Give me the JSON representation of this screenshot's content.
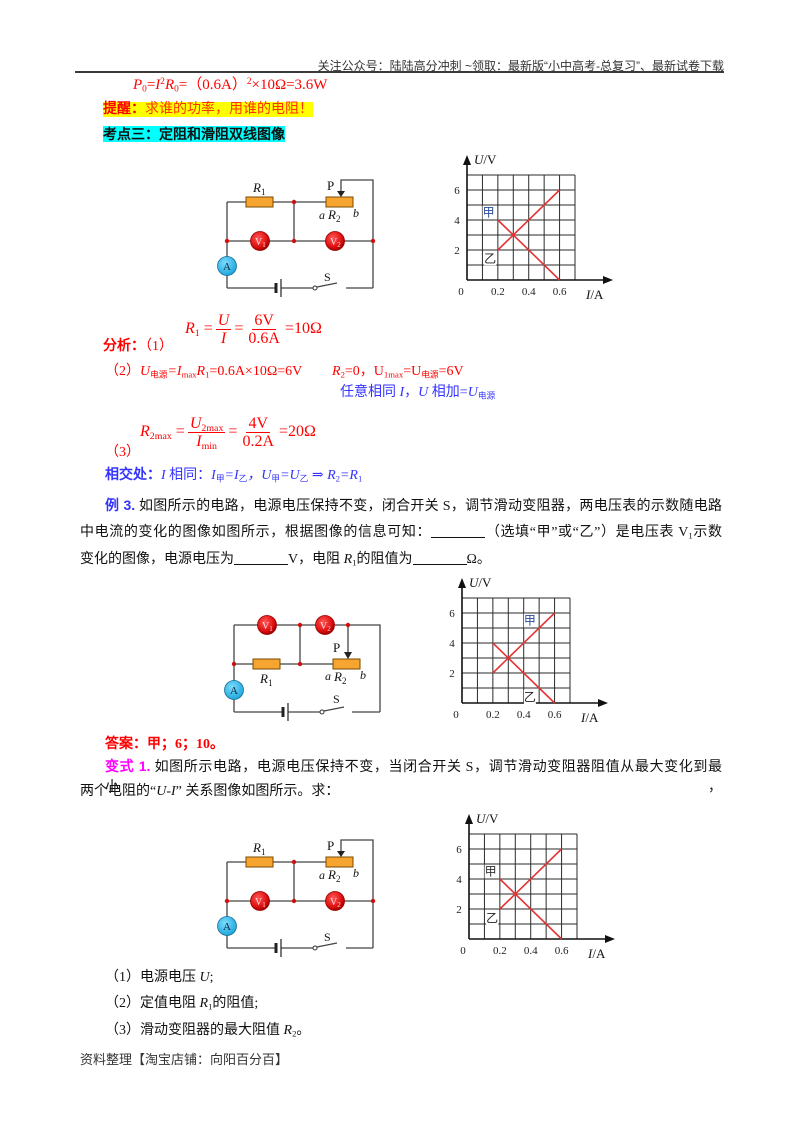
{
  "header": {
    "notice": "关注公众号：陆陆高分冲刺  ~领取：最新版“小中高考-总复习”、最新试卷下载"
  },
  "review": {
    "power_formula": {
      "p": "P",
      "p_sub": "0",
      "eq1": "=",
      "i": "I",
      "i_sup": "2",
      "r": "R",
      "r_sub": "0",
      "mid": "=（0.6A）",
      "sq": "2",
      "tail": "×10Ω=3.6W"
    },
    "reminder_label": "提醒：",
    "reminder_text": "求谁的功率，用谁的电阻！",
    "topic_heading": "考点三：定阻和滑阻双线图像"
  },
  "circuit": {
    "r": "R",
    "r1_sub": "1",
    "r2_sub": "2",
    "slider": "P",
    "end_a": "a",
    "end_b": "b",
    "switch": "S",
    "voltmeter": "V",
    "v1_sub": "1",
    "v2_sub": "2",
    "ammeter": "A"
  },
  "analysis": {
    "label": "分析：",
    "step1": {
      "num": "（1）",
      "lhs": "R",
      "lhs_sub": "1",
      "eq": "=",
      "frac1_num": "U",
      "frac1_den": "I",
      "frac2_num": "6V",
      "frac2_den": "0.6A",
      "result": "=10Ω"
    },
    "step2": {
      "num": "（2）",
      "u": "U",
      "u_sub": "电源",
      "eq1": "=I",
      "i_sub": "max",
      "r": "R",
      "r_sub": "1",
      "rest": "=0.6A×10Ω=6V",
      "r2": "R",
      "r2_sub": "2",
      "mid": "=0，U",
      "u1_sub": "1max",
      "eq2": "=U",
      "src_sub": "电源",
      "end": "=6V"
    },
    "note": {
      "t1": "任意相同 ",
      "i": "I",
      "comma": "，",
      "u": "U",
      "t2": " 相加=",
      "u2": "U",
      "sub": "电源"
    },
    "step3": {
      "num": "（3）",
      "lhs": "R",
      "lhs_sub": "2max",
      "eq": "=",
      "frac1_num": "U",
      "frac1_num_sub": "2max",
      "frac1_den": "I",
      "frac1_den_sub": "min",
      "frac2_num": "4V",
      "frac2_den": "0.2A",
      "result": "=20Ω"
    },
    "intersection": {
      "label": "相交处：",
      "i": "I",
      "t1": " 相同：",
      "i2": "I",
      "s1": "甲",
      "e1": "=I",
      "s2": "乙",
      "c1": "，U",
      "s3": "甲",
      "e2": "=U",
      "s4": "乙",
      "arrow": " ⇒ ",
      "r": "R",
      "r_sub": "2",
      "e3": "=R",
      "r1_sub": "1"
    }
  },
  "example3": {
    "label": "例 3.",
    "line1": "如图所示的电路，电源电压保持不变，闭合开关 S，调节滑动变阻器，两电压表的示数随电路",
    "line2a": "中电流的变化的图像如图所示，根据图像的信息可知：",
    "line2b": "（选填“甲”或“乙”）是电压表 V",
    "line2b_sub": "1",
    "line2c": "示数",
    "line3a": "变化的图像，电源电压为",
    "line3b": "V，电阻 ",
    "line3_r": "R",
    "line3_r_sub": "1",
    "line3c": "的阻值为",
    "line3d": "Ω。"
  },
  "answer": {
    "label": "答案：",
    "value": "甲；6；10。"
  },
  "variant1": {
    "label": "变式 1.",
    "line1": "如图所示电路，电源电压保持不变，当闭合开关 S，调节滑动变阻器阻值从最大变化到最小，",
    "line2a": "两个电阻的“",
    "line2_ui": "U-I",
    "line2b": "” 关系图像如图所示。求：",
    "questions": [
      {
        "num": "（1）",
        "text": "电源电压 ",
        "var": "U",
        "sub": "",
        "tail": ";"
      },
      {
        "num": "（2）",
        "text": "定值电阻 ",
        "var": "R",
        "sub": "1",
        "tail": "的阻值;"
      },
      {
        "num": "（3）",
        "text": "滑动变阻器的最大阻值 ",
        "var": "R",
        "sub": "2",
        "tail": "。"
      }
    ]
  },
  "footer": {
    "text": "资料整理【淘宝店铺：向阳百分百】"
  },
  "colors": {
    "formula_red": "#ff0000",
    "reminder_orange": "#ff3300",
    "highlight_yellow": "#ffff00",
    "highlight_cyan": "#00ffff",
    "note_blue": "#3333ff",
    "variant_magenta": "#ff00ff",
    "resistor": "#f6a531",
    "voltmeter": "#e01010",
    "ammeter": "#2fb8e8",
    "graph_line": "#e53333"
  },
  "chart_data": [
    {
      "type": "line",
      "title": "",
      "xlabel": "I/A",
      "ylabel": "U/V",
      "xlim": [
        0,
        0.7
      ],
      "ylim": [
        0,
        7
      ],
      "grid": true,
      "grid_step": [
        0.1,
        1
      ],
      "origin_label": "0",
      "xticks": [
        0.2,
        0.4,
        0.6
      ],
      "xtick_labels": [
        "0.2",
        "0.4",
        "0.6"
      ],
      "yticks": [
        2,
        4,
        6
      ],
      "ytick_labels": [
        "2",
        "4",
        "6"
      ],
      "series": [
        {
          "name": "甲",
          "x": [
            0.2,
            0.6
          ],
          "y": [
            4,
            0
          ]
        },
        {
          "name": "乙",
          "x": [
            0.2,
            0.6
          ],
          "y": [
            2,
            6
          ]
        }
      ],
      "markers": [
        [
          0.3,
          3
        ]
      ],
      "annotations": [
        {
          "text": "甲",
          "x": 0.14,
          "y": 4.5,
          "color": "#2a4d9a"
        },
        {
          "text": "乙",
          "x": 0.15,
          "y": 1.45,
          "color": "#222222"
        }
      ],
      "line_color": "#e53333"
    },
    {
      "type": "line",
      "title": "",
      "xlabel": "I/A",
      "ylabel": "U/V",
      "xlim": [
        0,
        0.7
      ],
      "ylim": [
        0,
        7
      ],
      "grid": true,
      "grid_step": [
        0.1,
        1
      ],
      "origin_label": "0",
      "xticks": [
        0.2,
        0.4,
        0.6
      ],
      "xtick_labels": [
        "0.2",
        "0.4",
        "0.6"
      ],
      "yticks": [
        2,
        4,
        6
      ],
      "ytick_labels": [
        "2",
        "4",
        "6"
      ],
      "series": [
        {
          "name": "甲",
          "x": [
            0.2,
            0.6
          ],
          "y": [
            2,
            6
          ]
        },
        {
          "name": "乙",
          "x": [
            0.2,
            0.6
          ],
          "y": [
            4,
            0
          ]
        }
      ],
      "markers": [
        [
          0.3,
          3
        ]
      ],
      "annotations": [
        {
          "text": "甲",
          "x": 0.44,
          "y": 5.5,
          "color": "#2a4d9a"
        },
        {
          "text": "乙",
          "x": 0.44,
          "y": 0.4,
          "color": "#222222"
        }
      ],
      "line_color": "#e53333"
    },
    {
      "type": "line",
      "title": "",
      "xlabel": "I/A",
      "ylabel": "U/V",
      "xlim": [
        0,
        0.7
      ],
      "ylim": [
        0,
        7
      ],
      "grid": true,
      "grid_step": [
        0.1,
        1
      ],
      "origin_label": "0",
      "xticks": [
        0.2,
        0.4,
        0.6
      ],
      "xtick_labels": [
        "0.2",
        "0.4",
        "0.6"
      ],
      "yticks": [
        2,
        4,
        6
      ],
      "ytick_labels": [
        "2",
        "4",
        "6"
      ],
      "series": [
        {
          "name": "甲",
          "x": [
            0.2,
            0.6
          ],
          "y": [
            4,
            0
          ]
        },
        {
          "name": "乙",
          "x": [
            0.2,
            0.6
          ],
          "y": [
            2,
            6
          ]
        }
      ],
      "markers": [
        [
          0.3,
          3
        ]
      ],
      "annotations": [
        {
          "text": "甲",
          "x": 0.14,
          "y": 4.5,
          "color": "#333333"
        },
        {
          "text": "乙",
          "x": 0.15,
          "y": 1.4,
          "color": "#222222"
        }
      ],
      "line_color": "#e53333"
    }
  ]
}
